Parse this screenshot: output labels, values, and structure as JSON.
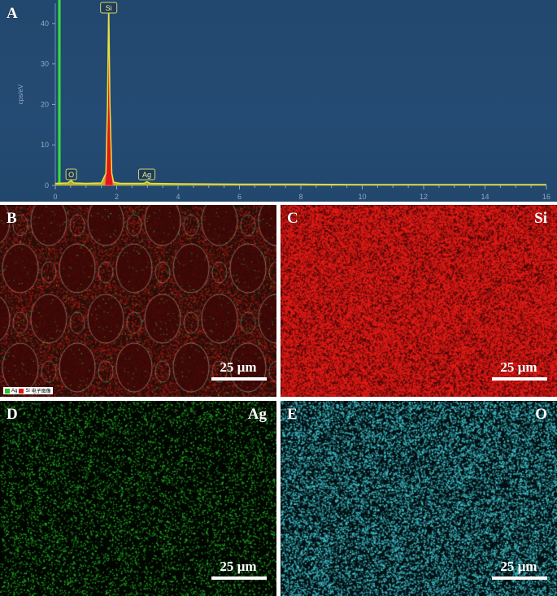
{
  "panels": {
    "A": {
      "letter": "A"
    },
    "B": {
      "letter": "B",
      "scale": "25 µm",
      "legend": [
        "Ag",
        "Si",
        "电子图像"
      ]
    },
    "C": {
      "letter": "C",
      "element": "Si",
      "scale": "25 µm"
    },
    "D": {
      "letter": "D",
      "element": "Ag",
      "scale": "25 µm"
    },
    "E": {
      "letter": "E",
      "element": "O",
      "scale": "25 µm"
    }
  },
  "colors": {
    "spectrum_bg": "#23486f",
    "si_peak": "#e01818",
    "ag_map": "#2fbf2f",
    "o_map": "#37c6d2",
    "si_map": "#d81818",
    "green_line": "#35e040"
  },
  "chart_data": {
    "type": "line",
    "title": "",
    "xlabel": "",
    "ylabel": "cps/eV",
    "xlim": [
      0,
      16
    ],
    "ylim": [
      0,
      45
    ],
    "xticks": [
      "0",
      "2",
      "4",
      "6",
      "8",
      "10",
      "12",
      "14",
      "16"
    ],
    "yticks": [
      "0",
      "10",
      "20",
      "30",
      "40"
    ],
    "grid": false,
    "series": [
      {
        "x": [
          0,
          0.4,
          0.52,
          0.6,
          1.0,
          1.5,
          1.65,
          1.7,
          1.74,
          1.78,
          1.84,
          1.9,
          2.1,
          2.9,
          2.98,
          3.1,
          4,
          6,
          8,
          10,
          12,
          14,
          16
        ],
        "y": [
          0.5,
          0.6,
          1.2,
          0.6,
          0.5,
          0.6,
          3,
          20,
          45,
          20,
          3,
          0.8,
          0.5,
          0.5,
          0.9,
          0.5,
          0.4,
          0.3,
          0.3,
          0.2,
          0.2,
          0.2,
          0.2
        ]
      }
    ],
    "annotations": [
      {
        "label": "Si",
        "x": 1.74
      },
      {
        "label": "O",
        "x": 0.52
      },
      {
        "label": "Ag",
        "x": 2.98
      }
    ]
  }
}
